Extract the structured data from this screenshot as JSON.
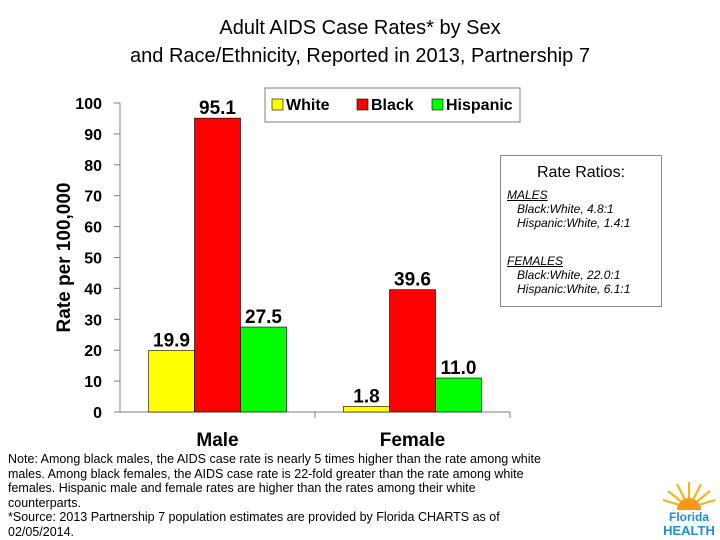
{
  "chart_data": {
    "type": "bar",
    "title_line1": "Adult AIDS Case Rates* by Sex",
    "title_line2": "and Race/Ethnicity, Reported in 2013, Partnership 7",
    "ylabel": "Rate per 100,000",
    "xlabel": "",
    "categories": [
      "Male",
      "Female"
    ],
    "series": [
      {
        "name": "White",
        "color": "#ffff00",
        "values": [
          19.9,
          1.8
        ]
      },
      {
        "name": "Black",
        "color": "#ff0000",
        "values": [
          95.1,
          39.6
        ]
      },
      {
        "name": "Hispanic",
        "color": "#00ff00",
        "values": [
          27.5,
          11.0
        ]
      }
    ],
    "data_labels": [
      [
        "19.9",
        "95.1",
        "27.5"
      ],
      [
        "1.8",
        "39.6",
        "11.0"
      ]
    ],
    "ylim": [
      0,
      100
    ],
    "yticks": [
      0,
      10,
      20,
      30,
      40,
      50,
      60,
      70,
      80,
      90,
      100
    ],
    "grid": false,
    "legend_position": "top-right"
  },
  "ratios": {
    "title": "Rate Ratios:",
    "males": {
      "heading": "MALES",
      "black_white": "Black:White, 4.8:1",
      "hispanic_white": "Hispanic:White, 1.4:1"
    },
    "females": {
      "heading": "FEMALES",
      "black_white": "Black:White, 22.0:1",
      "hispanic_white": "Hispanic:White, 6.1:1"
    }
  },
  "note": {
    "line1": "Note: Among black males, the AIDS case rate is nearly 5 times higher than the rate among white",
    "line2": "males. Among black females, the AIDS case rate is 22-fold greater than the rate among white",
    "line3": "females. Hispanic male and female rates are higher than the rates among their white",
    "line4": "counterparts.",
    "line5": "*Source: 2013 Partnership 7 population estimates are provided by Florida CHARTS as of",
    "line6": "02/05/2014."
  },
  "logo": {
    "line1": "Florida",
    "line2": "HEALTH"
  }
}
